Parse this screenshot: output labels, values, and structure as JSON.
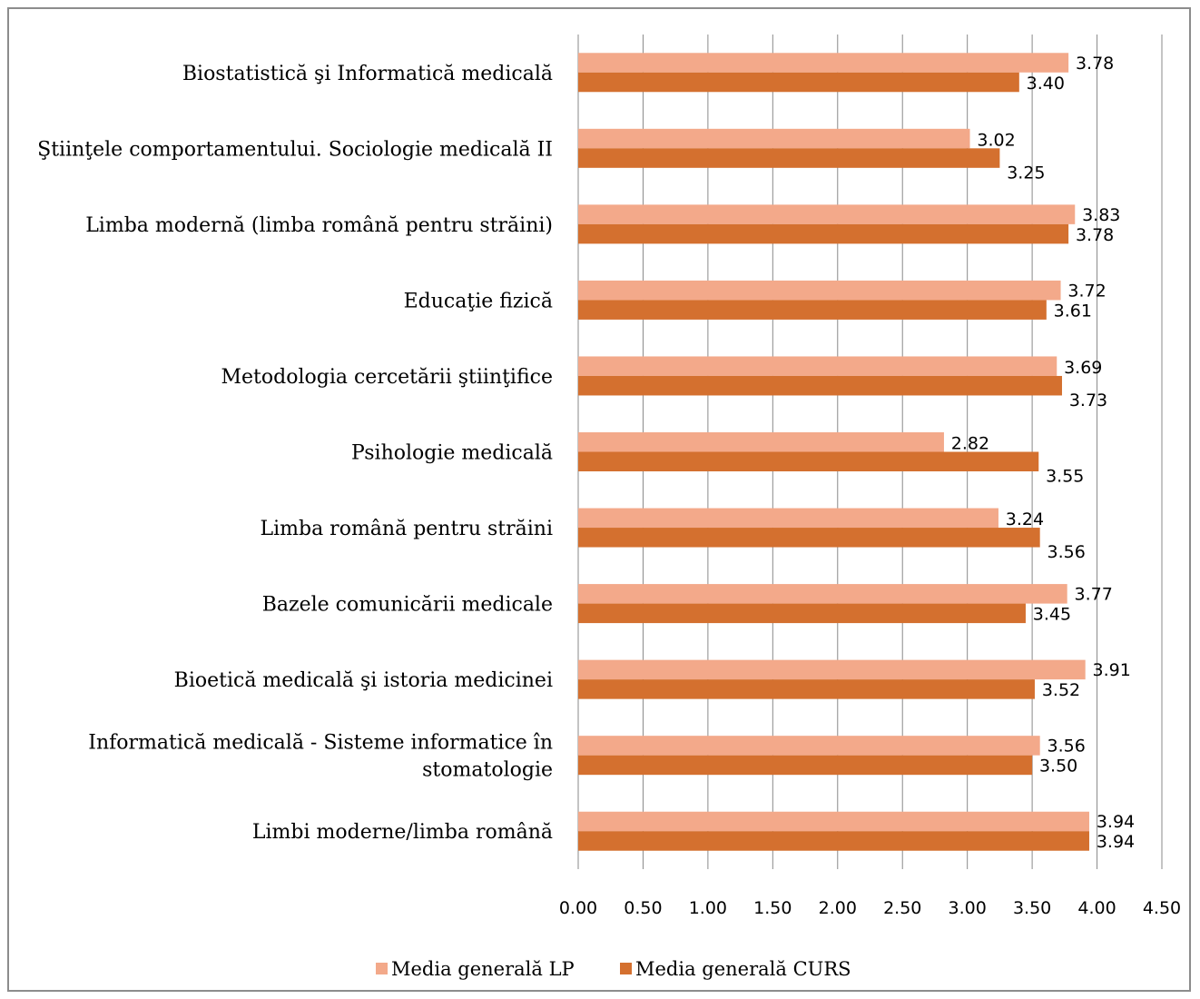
{
  "chart_data": {
    "type": "bar",
    "orientation": "horizontal",
    "categories": [
      [
        "Biostatistică şi Informatică medicală"
      ],
      [
        "Ştiinţele comportamentului. Sociologie medicală II"
      ],
      [
        "Limba modernă (limba română pentru străini)"
      ],
      [
        "Educaţie fizică"
      ],
      [
        "Metodologia cercetării ştiinţifice"
      ],
      [
        "Psihologie medicală"
      ],
      [
        "Limba română pentru străini"
      ],
      [
        "Bazele comunicării medicale"
      ],
      [
        "Bioetică medicală şi istoria medicinei"
      ],
      [
        "Informatică medicală - Sisteme informatice în",
        "stomatologie"
      ],
      [
        "Limbi moderne/limba română"
      ]
    ],
    "series": [
      {
        "name": "Media generală LP",
        "color": "#f3a98a",
        "values": [
          3.78,
          3.02,
          3.83,
          3.72,
          3.69,
          2.82,
          3.24,
          3.77,
          3.91,
          3.56,
          3.94
        ],
        "labels": [
          "3.78",
          "3.02",
          "3.83",
          "3.72",
          "3.69",
          "2.82",
          "3.24",
          "3.77",
          "3.91",
          "3.56",
          "3.94"
        ]
      },
      {
        "name": "Media generală CURS",
        "color": "#d4702f",
        "values": [
          3.4,
          3.25,
          3.78,
          3.61,
          3.73,
          3.55,
          3.56,
          3.45,
          3.52,
          3.5,
          3.94
        ],
        "labels": [
          "3.40",
          "3.25",
          "3.78",
          "3.61",
          "3.73",
          "3.55",
          "3.56",
          "3.45",
          "3.52",
          "3.50",
          "3.94"
        ]
      }
    ],
    "xlim": [
      0,
      4.5
    ],
    "xticks": [
      "0.00",
      "0.50",
      "1.00",
      "1.50",
      "2.00",
      "2.50",
      "3.00",
      "3.50",
      "4.00",
      "4.50"
    ],
    "grid": true,
    "legend": "bottom",
    "title": "",
    "xlabel": "",
    "ylabel": ""
  }
}
